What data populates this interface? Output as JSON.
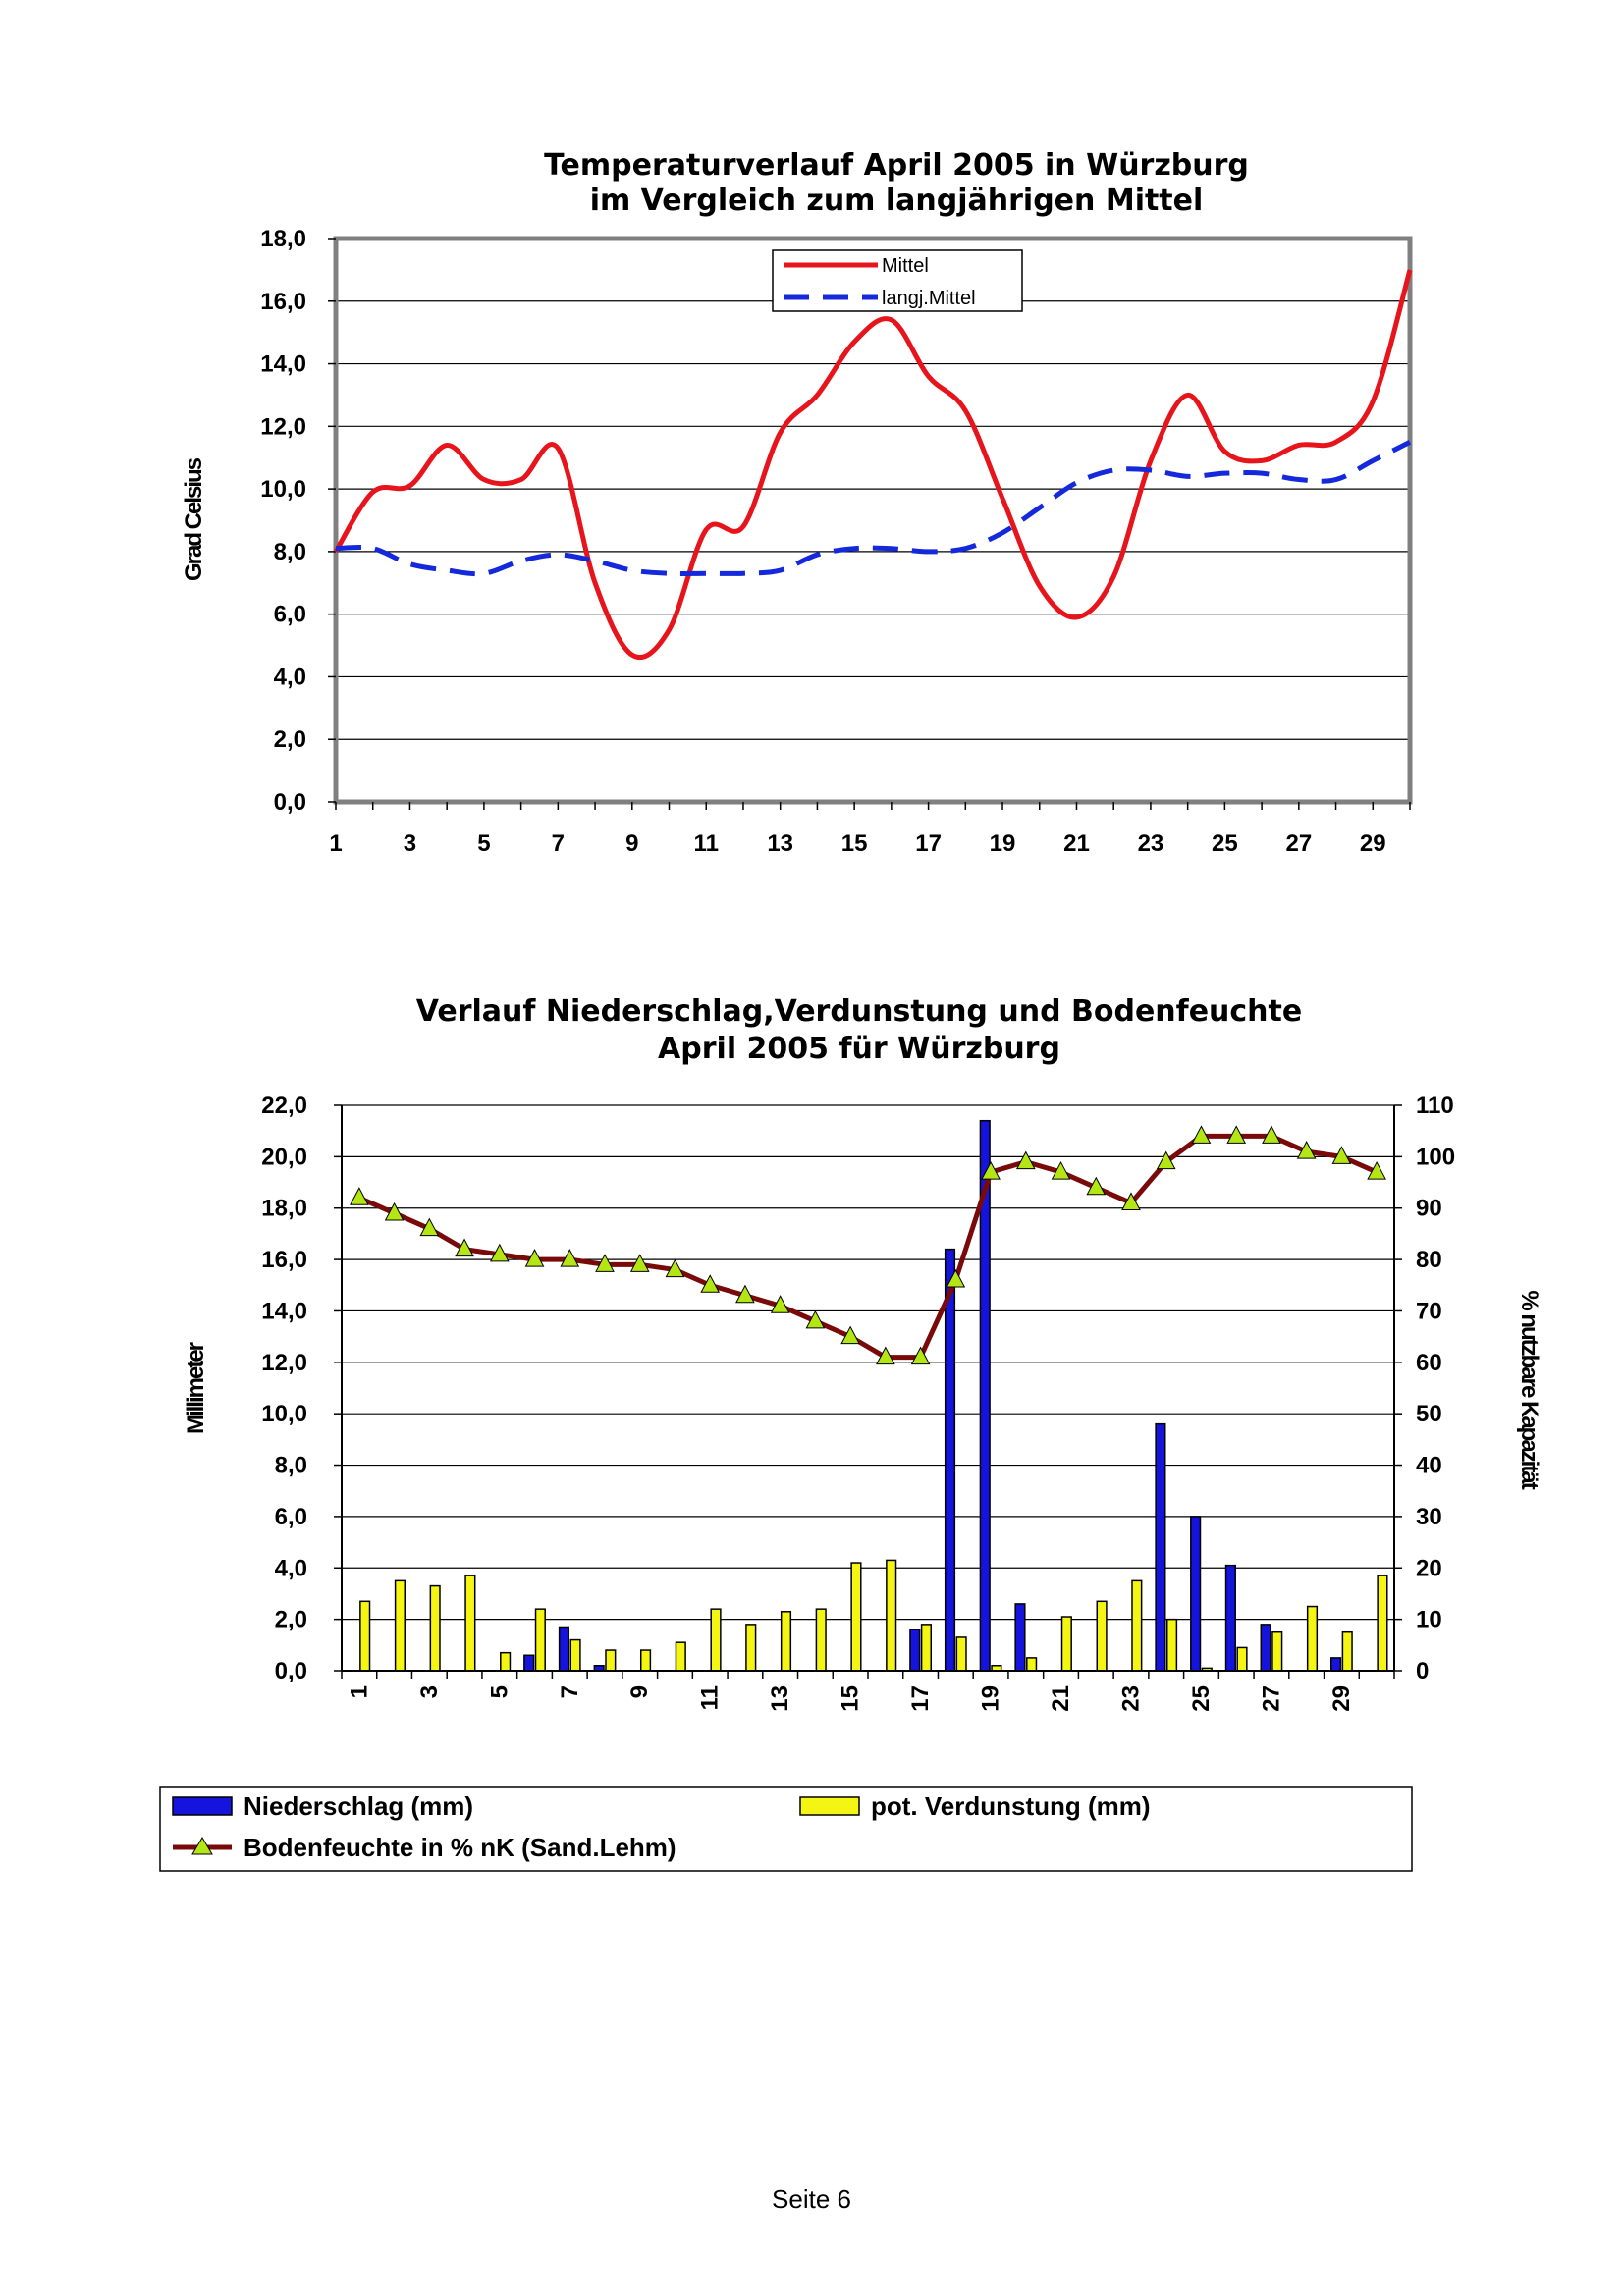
{
  "footer": {
    "page_label": "Seite 6"
  },
  "chart_data": [
    {
      "type": "line",
      "title_line1": "Temperaturverlauf April 2005 in Würzburg",
      "title_line2": "im Vergleich zum langjährigen Mittel",
      "ylabel": "Grad Celsius",
      "ylim": [
        0,
        18
      ],
      "y_ticks": [
        "0,0",
        "2,0",
        "4,0",
        "6,0",
        "8,0",
        "10,0",
        "12,0",
        "14,0",
        "16,0",
        "18,0"
      ],
      "x_ticks": [
        "1",
        "3",
        "5",
        "7",
        "9",
        "11",
        "13",
        "15",
        "17",
        "19",
        "21",
        "23",
        "25",
        "27",
        "29"
      ],
      "x": [
        1,
        2,
        3,
        4,
        5,
        6,
        7,
        8,
        9,
        10,
        11,
        12,
        13,
        14,
        15,
        16,
        17,
        18,
        19,
        20,
        21,
        22,
        23,
        24,
        25,
        26,
        27,
        28,
        29,
        30
      ],
      "grid": true,
      "legend_position": "top-center",
      "series": [
        {
          "name": "Mittel",
          "color": "#e8141c",
          "dash": "solid",
          "values": [
            8.0,
            9.9,
            10.1,
            11.4,
            10.3,
            10.3,
            11.3,
            7.0,
            4.7,
            5.5,
            8.7,
            8.8,
            11.8,
            13.0,
            14.7,
            15.4,
            13.6,
            12.5,
            9.7,
            6.9,
            5.9,
            7.2,
            10.9,
            13.0,
            11.2,
            10.9,
            11.4,
            11.5,
            12.8,
            17.0
          ]
        },
        {
          "name": "langj.Mittel",
          "color": "#1428dc",
          "dash": "dashed",
          "values": [
            8.1,
            8.1,
            7.6,
            7.4,
            7.3,
            7.7,
            7.9,
            7.7,
            7.4,
            7.3,
            7.3,
            7.3,
            7.4,
            7.9,
            8.1,
            8.1,
            8.0,
            8.1,
            8.6,
            9.4,
            10.2,
            10.6,
            10.6,
            10.4,
            10.5,
            10.5,
            10.3,
            10.3,
            10.9,
            11.5
          ]
        }
      ]
    },
    {
      "type": "bar",
      "title_line1": "Verlauf Niederschlag,Verdunstung und Bodenfeuchte",
      "title_line2": "April 2005 für Würzburg",
      "ylabel": "Millimeter",
      "y2label": "% nutzbare Kapazität",
      "ylim": [
        0,
        22
      ],
      "y2lim": [
        0,
        110
      ],
      "y_ticks": [
        "0,0",
        "2,0",
        "4,0",
        "6,0",
        "8,0",
        "10,0",
        "12,0",
        "14,0",
        "16,0",
        "18,0",
        "20,0",
        "22,0"
      ],
      "y2_ticks": [
        "0",
        "10",
        "20",
        "30",
        "40",
        "50",
        "60",
        "70",
        "80",
        "90",
        "100",
        "110"
      ],
      "x_ticks": [
        "1",
        "3",
        "5",
        "7",
        "9",
        "11",
        "13",
        "15",
        "17",
        "19",
        "21",
        "23",
        "25",
        "27",
        "29"
      ],
      "categories": [
        1,
        2,
        3,
        4,
        5,
        6,
        7,
        8,
        9,
        10,
        11,
        12,
        13,
        14,
        15,
        16,
        17,
        18,
        19,
        20,
        21,
        22,
        23,
        24,
        25,
        26,
        27,
        28,
        29,
        30
      ],
      "grid": true,
      "legend_position": "bottom",
      "series": [
        {
          "name": "Niederschlag (mm)",
          "color": "#1414dc",
          "kind": "bar",
          "values": [
            0,
            0,
            0,
            0,
            0,
            0.6,
            1.7,
            0.2,
            0,
            0,
            0,
            0,
            0,
            0,
            0,
            0,
            1.6,
            16.4,
            21.4,
            2.6,
            0,
            0,
            0,
            9.6,
            6.0,
            4.1,
            1.8,
            0,
            0.5,
            0
          ]
        },
        {
          "name": "pot. Verdunstung (mm)",
          "color": "#f5f514",
          "kind": "bar",
          "values": [
            2.7,
            3.5,
            3.3,
            3.7,
            0.7,
            2.4,
            1.2,
            0.8,
            0.8,
            1.1,
            2.4,
            1.8,
            2.3,
            2.4,
            4.2,
            4.3,
            1.8,
            1.3,
            0.2,
            0.5,
            2.1,
            2.7,
            3.5,
            2.0,
            0.1,
            0.9,
            1.5,
            2.5,
            1.5,
            3.7
          ]
        },
        {
          "name": "Bodenfeuchte in % nK (Sand.Lehm)",
          "color": "#7a0a0a",
          "marker_color": "#b4e614",
          "kind": "line",
          "axis": "y2",
          "values": [
            92,
            89,
            86,
            82,
            81,
            80,
            80,
            79,
            79,
            78,
            75,
            73,
            71,
            68,
            65,
            61,
            61,
            76,
            97,
            99,
            97,
            94,
            91,
            99,
            104,
            104,
            104,
            101,
            100,
            97
          ]
        }
      ]
    }
  ]
}
